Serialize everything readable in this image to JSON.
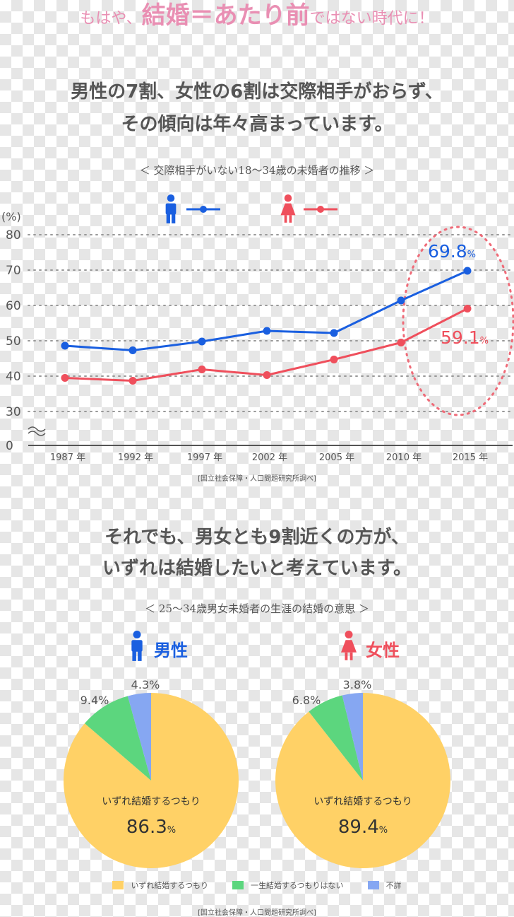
{
  "banner": {
    "pre": "もはや、",
    "big": "結婚＝あたり前",
    "post": "ではない時代に！"
  },
  "section1": {
    "headline1": "男性の7割、女性の6割は交際相手がおらず、",
    "headline2": "その傾向は年々高まっています。",
    "subtitle": "＜ 交際相手がいない18～34歳の未婚者の推移 ＞",
    "source": "[国立社会保障・人口問題研究所調べ]"
  },
  "chart_data": [
    {
      "type": "line",
      "x": [
        "1987 年",
        "1992 年",
        "1997 年",
        "2002 年",
        "2005 年",
        "2010 年",
        "2015 年"
      ],
      "ylabel": "(%)",
      "ylim": [
        0,
        80
      ],
      "yticks": [
        "80",
        "70",
        "60",
        "50",
        "40",
        "30",
        "0"
      ],
      "grid": true,
      "axis_break": true,
      "series": [
        {
          "values": [
            48.6,
            47.3,
            49.8,
            52.8,
            52.2,
            61.4,
            69.8
          ],
          "color": "#1a5fe0",
          "icon": "male-icon",
          "end_label": "69.8",
          "unit": "%"
        },
        {
          "values": [
            39.5,
            38.7,
            41.9,
            40.3,
            44.7,
            49.5,
            59.1
          ],
          "color": "#ef4f5c",
          "icon": "female-icon",
          "end_label": "59.1",
          "unit": "%"
        }
      ]
    },
    {
      "type": "pie",
      "title": "男性",
      "labels": [
        "いずれ結婚するつもり",
        "一生結婚するつもりはない",
        "不詳"
      ],
      "values": [
        86.3,
        9.4,
        4.3
      ],
      "value_labels": [
        "86.3",
        "9.4%",
        "4.3%"
      ],
      "unit": "%",
      "colors": [
        "#ffd166",
        "#5cd67e",
        "#86a7f2"
      ],
      "title_color": "#1a5fe0"
    },
    {
      "type": "pie",
      "title": "女性",
      "labels": [
        "いずれ結婚するつもり",
        "一生結婚するつもりはない",
        "不詳"
      ],
      "values": [
        89.4,
        6.8,
        3.8
      ],
      "value_labels": [
        "89.4",
        "6.8%",
        "3.8%"
      ],
      "unit": "%",
      "colors": [
        "#ffd166",
        "#5cd67e",
        "#86a7f2"
      ],
      "title_color": "#ef4f5c"
    }
  ],
  "section2": {
    "headline1": "それでも、男女とも9割近くの方が、",
    "headline2": "いずれは結婚したいと考えています。",
    "subtitle": "＜ 25～34歳男女未婚者の生涯の結婚の意思 ＞",
    "pie_inner_label": "いずれ結婚するつもり",
    "legend": [
      {
        "label": "いずれ結婚するつもり",
        "color": "#ffd166"
      },
      {
        "label": "一生結婚するつもりはない",
        "color": "#5cd67e"
      },
      {
        "label": "不詳",
        "color": "#86a7f2"
      }
    ],
    "source": "[国立社会保障・人口問題研究所調べ]"
  }
}
